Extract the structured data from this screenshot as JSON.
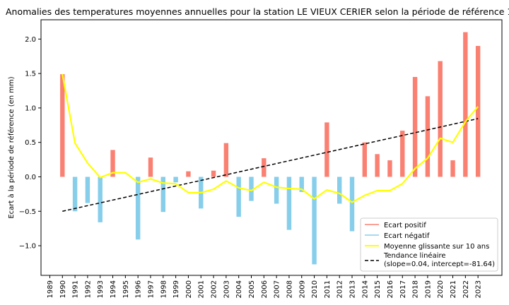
{
  "chart_data": {
    "type": "bar",
    "title": "Anomalies des temperatures moyennes annuelles pour la station LE VIEUX CERIER selon la période de référence 1991-2020",
    "xlabel": "",
    "ylabel": "Ecart à la période de référence (en mm)",
    "xlim": [
      1988.3,
      1990.0
    ],
    "x_ticks": [
      "1989",
      "1990",
      "1991",
      "1992",
      "1993",
      "1994",
      "1995",
      "1996",
      "1997",
      "1998",
      "1999",
      "2000",
      "2001",
      "2002",
      "2003",
      "2004",
      "2005",
      "2006",
      "2007",
      "2008",
      "2009",
      "2010",
      "2011",
      "2012",
      "2013",
      "2014",
      "2015",
      "2016",
      "2017",
      "2018",
      "2019",
      "2020",
      "2021",
      "2022",
      "2023"
    ],
    "ylim": [
      -1.43,
      2.28
    ],
    "y_ticks": [
      "−1.0",
      "−0.5",
      "0.0",
      "0.5",
      "1.0",
      "1.5",
      "2.0"
    ],
    "grid": false,
    "legend_position": "bottom-right",
    "colors": {
      "positive": "#fa8072",
      "negative": "#87ceeb",
      "moving_avg": "#ffff00",
      "trend": "#000000"
    },
    "years": [
      1990,
      1991,
      1992,
      1993,
      1994,
      1995,
      1996,
      1997,
      1998,
      1999,
      2000,
      2001,
      2002,
      2003,
      2004,
      2005,
      2006,
      2007,
      2008,
      2009,
      2010,
      2011,
      2012,
      2013,
      2014,
      2015,
      2016,
      2017,
      2018,
      2019,
      2020,
      2021,
      2022,
      2023
    ],
    "anomalies": [
      1.49,
      -0.5,
      -0.38,
      -0.66,
      0.39,
      0.0,
      -0.91,
      0.28,
      -0.51,
      -0.08,
      0.08,
      -0.46,
      0.09,
      0.49,
      -0.58,
      -0.35,
      0.27,
      -0.39,
      -0.77,
      -0.22,
      -1.27,
      0.79,
      -0.39,
      -0.79,
      0.5,
      0.33,
      0.24,
      0.67,
      1.45,
      1.17,
      1.68,
      0.24,
      2.1,
      1.9
    ],
    "series": [
      {
        "name": "Ecart positif",
        "kind": "bar"
      },
      {
        "name": "Ecart négatif",
        "kind": "bar"
      },
      {
        "name": "Moyenne glissante sur 10 ans",
        "kind": "line",
        "values": [
          1.49,
          0.49,
          0.2,
          -0.01,
          0.06,
          0.06,
          -0.08,
          -0.03,
          -0.09,
          -0.1,
          -0.23,
          -0.23,
          -0.18,
          -0.06,
          -0.16,
          -0.2,
          -0.08,
          -0.15,
          -0.17,
          -0.18,
          -0.32,
          -0.19,
          -0.24,
          -0.37,
          -0.27,
          -0.2,
          -0.2,
          -0.1,
          0.12,
          0.27,
          0.56,
          0.5,
          0.8,
          1.02
        ]
      },
      {
        "name": "Tendance linéaire\n(slope=0.04, intercept=-81.64)",
        "kind": "line",
        "slope": 0.04,
        "intercept": -81.64
      }
    ],
    "trend_label_line1": "Tendance linéaire",
    "trend_label_line2": "(slope=0.04, intercept=-81.64)"
  }
}
